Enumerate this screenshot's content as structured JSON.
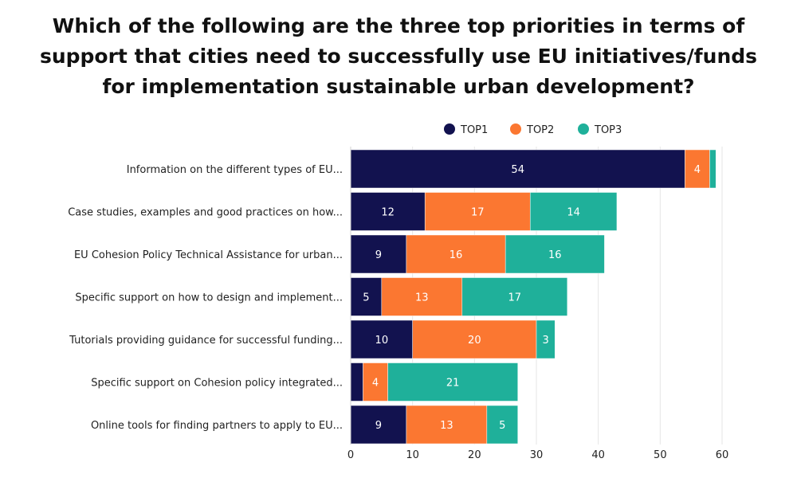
{
  "chart_data": {
    "type": "bar",
    "orientation": "horizontal",
    "stacked": true,
    "title": "Which of the following are the three top priorities in terms of support that cities need to successfully use EU initiatives/funds for implementation sustainable urban development?",
    "xlabel": "",
    "ylabel": "",
    "xlim": [
      0,
      60
    ],
    "xticks": [
      0,
      10,
      20,
      30,
      40,
      50,
      60
    ],
    "grid": true,
    "legend_position": "top",
    "categories": [
      "Information on the different types of EU...",
      "Case studies, examples and good practices on how...",
      "EU Cohesion Policy Technical Assistance for urban...",
      "Specific support on how to design and implement...",
      "Tutorials providing guidance for successful funding...",
      "Specific support on Cohesion policy integrated...",
      "Online tools for finding partners to apply to EU..."
    ],
    "series": [
      {
        "name": "TOP1",
        "color": "#12124f",
        "values": [
          54,
          12,
          9,
          5,
          10,
          2,
          9
        ],
        "labels": [
          "54",
          "12",
          "9",
          "5",
          "10",
          "",
          "9"
        ]
      },
      {
        "name": "TOP2",
        "color": "#fb7731",
        "values": [
          4,
          17,
          16,
          13,
          20,
          4,
          13
        ],
        "labels": [
          "4",
          "17",
          "16",
          "13",
          "20",
          "4",
          "13"
        ]
      },
      {
        "name": "TOP3",
        "color": "#1fb09a",
        "values": [
          1,
          14,
          16,
          17,
          3,
          21,
          5
        ],
        "labels": [
          "",
          "14",
          "16",
          "17",
          "3",
          "21",
          "5"
        ]
      }
    ]
  }
}
